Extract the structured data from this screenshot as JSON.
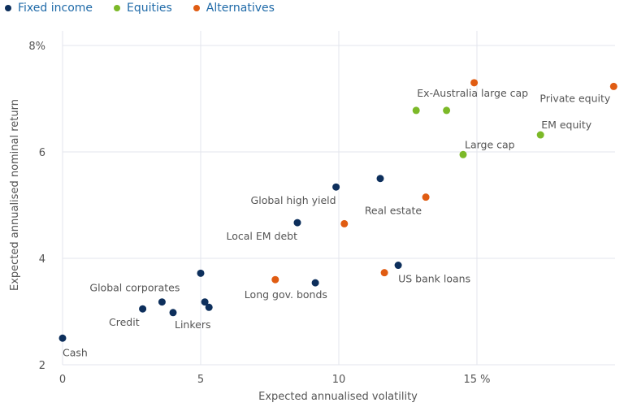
{
  "chart_data": {
    "type": "scatter",
    "xlabel": "Expected annualised volatility",
    "ylabel": "Expected annualised nominal return",
    "xlim": [
      0,
      20
    ],
    "ylim": [
      2,
      8
    ],
    "x_ticks": [
      {
        "value": 0,
        "label": "0"
      },
      {
        "value": 5,
        "label": "5"
      },
      {
        "value": 10,
        "label": "10"
      },
      {
        "value": 15,
        "label": "15 %"
      }
    ],
    "y_ticks": [
      {
        "value": 2,
        "label": "2"
      },
      {
        "value": 4,
        "label": "4"
      },
      {
        "value": 6,
        "label": "6"
      },
      {
        "value": 8,
        "label": "8%"
      }
    ],
    "series": [
      {
        "name": "Fixed income",
        "color": "#0d2f5c",
        "points": [
          {
            "x": 0.0,
            "y": 2.5,
            "label": "Cash"
          },
          {
            "x": 2.9,
            "y": 3.05,
            "label": "Credit"
          },
          {
            "x": 3.6,
            "y": 3.18,
            "label": "Global corporates"
          },
          {
            "x": 4.0,
            "y": 2.98,
            "label": "Linkers"
          },
          {
            "x": 5.0,
            "y": 3.72,
            "label": ""
          },
          {
            "x": 5.15,
            "y": 3.18,
            "label": ""
          },
          {
            "x": 5.3,
            "y": 3.08,
            "label": ""
          },
          {
            "x": 8.5,
            "y": 4.67,
            "label": "Local EM debt"
          },
          {
            "x": 9.15,
            "y": 3.54,
            "label": ""
          },
          {
            "x": 9.9,
            "y": 5.34,
            "label": "Global high yield"
          },
          {
            "x": 11.5,
            "y": 5.5,
            "label": ""
          },
          {
            "x": 12.15,
            "y": 3.87,
            "label": "US bank loans"
          }
        ]
      },
      {
        "name": "Equities",
        "color": "#7cb928",
        "points": [
          {
            "x": 12.8,
            "y": 6.78,
            "label": "Ex-Australia large cap"
          },
          {
            "x": 13.9,
            "y": 6.78,
            "label": ""
          },
          {
            "x": 14.5,
            "y": 5.95,
            "label": "Large cap"
          },
          {
            "x": 17.3,
            "y": 6.32,
            "label": "EM equity"
          }
        ]
      },
      {
        "name": "Alternatives",
        "color": "#e05c12",
        "points": [
          {
            "x": 7.7,
            "y": 3.6,
            "label": "Long gov. bonds"
          },
          {
            "x": 10.2,
            "y": 4.65,
            "label": ""
          },
          {
            "x": 11.65,
            "y": 3.73,
            "label": ""
          },
          {
            "x": 13.15,
            "y": 5.15,
            "label": "Real estate"
          },
          {
            "x": 14.9,
            "y": 7.3,
            "label": ""
          },
          {
            "x": 19.95,
            "y": 7.23,
            "label": "Private equity"
          }
        ]
      }
    ]
  }
}
